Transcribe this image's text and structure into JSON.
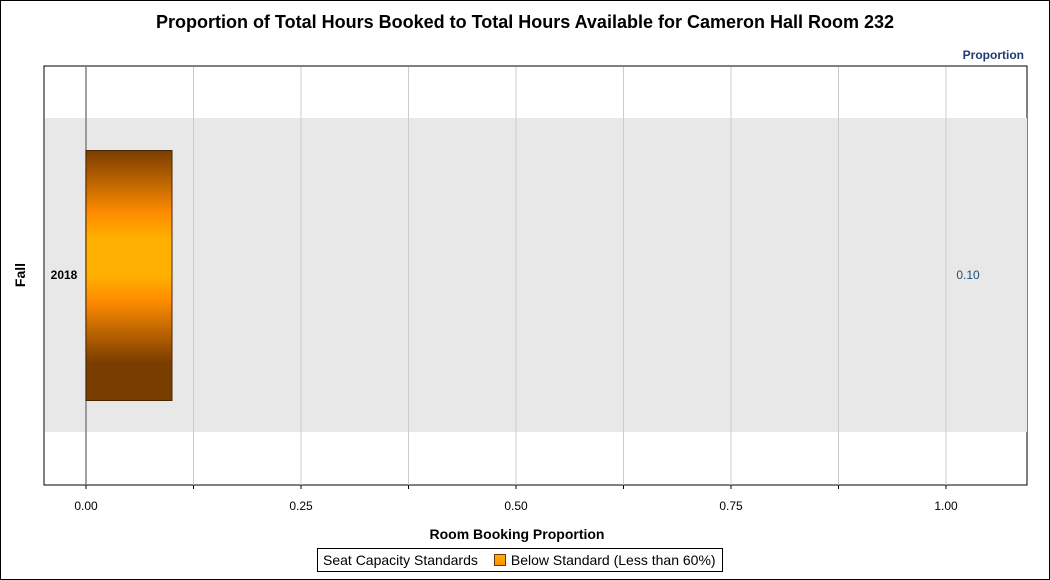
{
  "chart_data": {
    "type": "bar",
    "orientation": "horizontal",
    "title": "Proportion of Total Hours Booked to Total Hours Available for Cameron Hall Room 232",
    "xlabel": "Room Booking Proportion",
    "ylabel": "Fall",
    "value_axis_caption": "Proportion",
    "categories": [
      "2018"
    ],
    "series": [
      {
        "name": "Below Standard (Less than 60%)",
        "values": [
          0.1
        ],
        "color": "#ff8c00"
      }
    ],
    "data_labels": [
      "0.10"
    ],
    "xlim": [
      0,
      1.1
    ],
    "xticks": [
      0,
      0.25,
      0.5,
      0.75,
      1.0
    ],
    "xtick_labels": [
      "0.00",
      "0.25",
      "0.50",
      "0.75",
      "1.00"
    ],
    "grid": true,
    "legend": {
      "title": "Seat Capacity Standards",
      "position": "bottom"
    }
  },
  "colors": {
    "band": "#e8e8e8",
    "grid": "#cccccc",
    "bar_dark": "#7a3d00",
    "bar_mid": "#ff8c00",
    "bar_light": "#ffb000",
    "value_label": "#1f4e79"
  }
}
